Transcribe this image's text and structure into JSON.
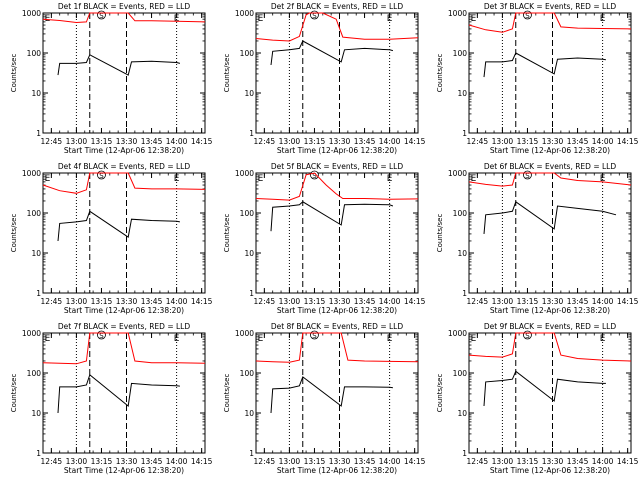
{
  "figure": {
    "ylabel": "Counts/sec",
    "xlabel": "Start Time (12-Apr-06 12:38:20)",
    "time_ticks": [
      "12:45",
      "13:00",
      "13:15",
      "13:30",
      "13:45",
      "14:00",
      "14:15"
    ],
    "y_ticks": [
      "1",
      "10",
      "100",
      "1000"
    ],
    "marker_labels": [
      "E",
      "S",
      "E"
    ],
    "colors": {
      "events": "#000000",
      "lld": "#ff0000",
      "axis": "#000000"
    }
  },
  "chart_data": [
    {
      "type": "line",
      "title": "Det 1f BLACK = Events, RED = LLD",
      "ylabel": "Counts/sec",
      "xlabel": "Start Time (12-Apr-06 12:38:20)",
      "ylim": [
        1,
        1000
      ],
      "y_scale": "log",
      "xlim": [
        "12:40",
        "14:17"
      ],
      "markers": {
        "E_start": "12:41",
        "S": "13:15",
        "E_end": "14:00",
        "dashed": [
          "13:08",
          "13:30"
        ],
        "dotted": [
          "13:00",
          "14:00"
        ]
      },
      "series": [
        {
          "name": "Events",
          "color": "#000000",
          "x": [
            "12:49",
            "12:50",
            "13:00",
            "13:06",
            "13:08",
            "13:31",
            "13:33",
            "13:45",
            "14:00",
            "14:02"
          ],
          "y": [
            28,
            55,
            55,
            58,
            90,
            28,
            60,
            62,
            58,
            55
          ]
        },
        {
          "name": "LLD",
          "color": "#ff0000",
          "x": [
            "12:40",
            "12:50",
            "13:00",
            "13:06",
            "13:08",
            "13:31",
            "13:35",
            "13:45",
            "14:00",
            "14:17"
          ],
          "y": [
            700,
            650,
            580,
            600,
            1000,
            1000,
            640,
            640,
            620,
            600
          ]
        }
      ]
    },
    {
      "type": "line",
      "title": "Det 2f BLACK = Events, RED = LLD",
      "ylabel": "Counts/sec",
      "xlabel": "Start Time (12-Apr-06 12:38:20)",
      "ylim": [
        1,
        1000
      ],
      "y_scale": "log",
      "xlim": [
        "12:40",
        "14:17"
      ],
      "markers": {
        "E_start": "12:41",
        "S": "13:15",
        "E_end": "14:00",
        "dashed": [
          "13:08",
          "13:30"
        ],
        "dotted": [
          "13:00",
          "14:00"
        ]
      },
      "series": [
        {
          "name": "Events",
          "color": "#000000",
          "x": [
            "12:49",
            "12:50",
            "13:00",
            "13:06",
            "13:08",
            "13:31",
            "13:33",
            "13:45",
            "14:00",
            "14:02"
          ],
          "y": [
            50,
            110,
            120,
            130,
            200,
            60,
            120,
            130,
            120,
            115
          ]
        },
        {
          "name": "LLD",
          "color": "#ff0000",
          "x": [
            "12:40",
            "12:50",
            "13:00",
            "13:06",
            "13:10",
            "13:12",
            "13:20",
            "13:28",
            "13:32",
            "13:45",
            "14:00",
            "14:17"
          ],
          "y": [
            230,
            210,
            200,
            260,
            900,
            1000,
            1000,
            700,
            250,
            220,
            220,
            240
          ]
        }
      ]
    },
    {
      "type": "line",
      "title": "Det 3f BLACK = Events, RED = LLD",
      "ylabel": "Counts/sec",
      "xlabel": "Start Time (12-Apr-06 12:38:20)",
      "ylim": [
        1,
        1000
      ],
      "y_scale": "log",
      "xlim": [
        "12:40",
        "14:17"
      ],
      "markers": {
        "E_start": "12:41",
        "S": "13:15",
        "E_end": "14:00",
        "dashed": [
          "13:08",
          "13:30"
        ],
        "dotted": [
          "13:00",
          "14:00"
        ]
      },
      "series": [
        {
          "name": "Events",
          "color": "#000000",
          "x": [
            "12:49",
            "12:50",
            "13:00",
            "13:06",
            "13:08",
            "13:31",
            "13:33",
            "13:45",
            "14:00",
            "14:02"
          ],
          "y": [
            25,
            60,
            60,
            65,
            100,
            30,
            70,
            75,
            70,
            68
          ]
        },
        {
          "name": "LLD",
          "color": "#ff0000",
          "x": [
            "12:40",
            "12:50",
            "13:00",
            "13:06",
            "13:08",
            "13:31",
            "13:35",
            "13:45",
            "14:00",
            "14:17"
          ],
          "y": [
            500,
            380,
            330,
            400,
            1000,
            1000,
            450,
            420,
            410,
            400
          ]
        }
      ]
    },
    {
      "type": "line",
      "title": "Det 4f BLACK = Events, RED = LLD",
      "ylabel": "Counts/sec",
      "xlabel": "Start Time (12-Apr-06 12:38:20)",
      "ylim": [
        1,
        1000
      ],
      "y_scale": "log",
      "xlim": [
        "12:40",
        "14:17"
      ],
      "markers": {
        "E_start": "12:41",
        "S": "13:15",
        "E_end": "14:00",
        "dashed": [
          "13:08",
          "13:30"
        ],
        "dotted": [
          "13:00",
          "14:00"
        ]
      },
      "series": [
        {
          "name": "Events",
          "color": "#000000",
          "x": [
            "12:49",
            "12:50",
            "13:00",
            "13:06",
            "13:08",
            "13:31",
            "13:33",
            "13:45",
            "14:00",
            "14:02"
          ],
          "y": [
            20,
            55,
            60,
            65,
            110,
            25,
            70,
            65,
            62,
            60
          ]
        },
        {
          "name": "LLD",
          "color": "#ff0000",
          "x": [
            "12:40",
            "12:50",
            "13:00",
            "13:06",
            "13:08",
            "13:31",
            "13:35",
            "13:45",
            "14:00",
            "14:17"
          ],
          "y": [
            500,
            360,
            310,
            380,
            1000,
            1000,
            420,
            400,
            400,
            390
          ]
        }
      ]
    },
    {
      "type": "line",
      "title": "Det 5f BLACK = Events, RED = LLD",
      "ylabel": "Counts/sec",
      "xlabel": "Start Time (12-Apr-06 12:38:20)",
      "ylim": [
        1,
        1000
      ],
      "y_scale": "log",
      "xlim": [
        "12:40",
        "14:17"
      ],
      "markers": {
        "E_start": "12:41",
        "S": "13:15",
        "E_end": "14:00",
        "dashed": [
          "13:08",
          "13:30"
        ],
        "dotted": [
          "13:00",
          "14:00"
        ]
      },
      "series": [
        {
          "name": "Events",
          "color": "#000000",
          "x": [
            "12:49",
            "12:50",
            "13:00",
            "13:06",
            "13:08",
            "13:31",
            "13:33",
            "13:45",
            "14:00",
            "14:02"
          ],
          "y": [
            35,
            140,
            150,
            160,
            190,
            50,
            160,
            165,
            160,
            150
          ]
        },
        {
          "name": "LLD",
          "color": "#ff0000",
          "x": [
            "12:40",
            "12:50",
            "13:00",
            "13:06",
            "13:10",
            "13:15",
            "13:22",
            "13:28",
            "13:32",
            "13:45",
            "14:00",
            "14:17"
          ],
          "y": [
            230,
            220,
            210,
            260,
            900,
            1000,
            500,
            300,
            230,
            230,
            220,
            225
          ]
        }
      ]
    },
    {
      "type": "line",
      "title": "Det 6f BLACK = Events, RED = LLD",
      "ylabel": "Counts/sec",
      "xlabel": "Start Time (12-Apr-06 12:38:20)",
      "ylim": [
        1,
        1000
      ],
      "y_scale": "log",
      "xlim": [
        "12:40",
        "14:17"
      ],
      "markers": {
        "E_start": "12:41",
        "S": "13:15",
        "E_end": "14:00",
        "dashed": [
          "13:08",
          "13:30"
        ],
        "dotted": [
          "13:00",
          "14:00"
        ]
      },
      "series": [
        {
          "name": "Events",
          "color": "#000000",
          "x": [
            "12:49",
            "12:50",
            "13:00",
            "13:06",
            "13:08",
            "13:31",
            "13:33",
            "13:45",
            "14:00",
            "14:08"
          ],
          "y": [
            30,
            90,
            100,
            110,
            190,
            40,
            150,
            130,
            110,
            90
          ]
        },
        {
          "name": "LLD",
          "color": "#ff0000",
          "x": [
            "12:40",
            "12:50",
            "13:00",
            "13:06",
            "13:08",
            "13:31",
            "13:35",
            "13:45",
            "14:00",
            "14:17"
          ],
          "y": [
            600,
            520,
            470,
            500,
            1000,
            1000,
            750,
            650,
            600,
            500
          ]
        }
      ]
    },
    {
      "type": "line",
      "title": "Det 7f BLACK = Events, RED = LLD",
      "ylabel": "Counts/sec",
      "xlabel": "Start Time (12-Apr-06 12:38:20)",
      "ylim": [
        1,
        1000
      ],
      "y_scale": "log",
      "xlim": [
        "12:40",
        "14:17"
      ],
      "markers": {
        "E_start": "12:41",
        "S": "13:15",
        "E_end": "14:00",
        "dashed": [
          "13:08",
          "13:30"
        ],
        "dotted": [
          "13:00",
          "14:00"
        ]
      },
      "series": [
        {
          "name": "Events",
          "color": "#000000",
          "x": [
            "12:49",
            "12:50",
            "13:00",
            "13:06",
            "13:08",
            "13:31",
            "13:33",
            "13:45",
            "14:00",
            "14:02"
          ],
          "y": [
            10,
            45,
            45,
            50,
            90,
            15,
            55,
            50,
            48,
            47
          ]
        },
        {
          "name": "LLD",
          "color": "#ff0000",
          "x": [
            "12:40",
            "12:50",
            "13:00",
            "13:06",
            "13:08",
            "13:31",
            "13:35",
            "13:45",
            "14:00",
            "14:17"
          ],
          "y": [
            180,
            175,
            170,
            200,
            1000,
            1000,
            200,
            180,
            180,
            175
          ]
        }
      ]
    },
    {
      "type": "line",
      "title": "Det 8f BLACK = Events, RED = LLD",
      "ylabel": "Counts/sec",
      "xlabel": "Start Time (12-Apr-06 12:38:20)",
      "ylim": [
        1,
        1000
      ],
      "y_scale": "log",
      "xlim": [
        "12:40",
        "14:17"
      ],
      "markers": {
        "E_start": "12:41",
        "S": "13:15",
        "E_end": "14:00",
        "dashed": [
          "13:08",
          "13:30"
        ],
        "dotted": [
          "13:00",
          "14:00"
        ]
      },
      "series": [
        {
          "name": "Events",
          "color": "#000000",
          "x": [
            "12:49",
            "12:50",
            "13:00",
            "13:06",
            "13:08",
            "13:31",
            "13:33",
            "13:45",
            "14:00",
            "14:02"
          ],
          "y": [
            10,
            40,
            42,
            48,
            80,
            15,
            45,
            45,
            44,
            43
          ]
        },
        {
          "name": "LLD",
          "color": "#ff0000",
          "x": [
            "12:40",
            "12:50",
            "13:00",
            "13:06",
            "13:08",
            "13:31",
            "13:35",
            "13:45",
            "14:00",
            "14:17"
          ],
          "y": [
            200,
            190,
            185,
            210,
            1000,
            1000,
            210,
            200,
            195,
            190
          ]
        }
      ]
    },
    {
      "type": "line",
      "title": "Det 9f BLACK = Events, RED = LLD",
      "ylabel": "Counts/sec",
      "xlabel": "Start Time (12-Apr-06 12:38:20)",
      "ylim": [
        1,
        1000
      ],
      "y_scale": "log",
      "xlim": [
        "12:40",
        "14:17"
      ],
      "markers": {
        "E_start": "12:41",
        "S": "13:15",
        "E_end": "14:00",
        "dashed": [
          "13:08",
          "13:30"
        ],
        "dotted": [
          "13:00",
          "14:00"
        ]
      },
      "series": [
        {
          "name": "Events",
          "color": "#000000",
          "x": [
            "12:49",
            "12:50",
            "13:00",
            "13:06",
            "13:08",
            "13:31",
            "13:33",
            "13:45",
            "14:00",
            "14:02"
          ],
          "y": [
            15,
            60,
            65,
            70,
            110,
            20,
            70,
            60,
            55,
            55
          ]
        },
        {
          "name": "LLD",
          "color": "#ff0000",
          "x": [
            "12:40",
            "12:50",
            "13:00",
            "13:06",
            "13:08",
            "13:31",
            "13:35",
            "13:45",
            "14:00",
            "14:17"
          ],
          "y": [
            280,
            260,
            250,
            300,
            1000,
            1000,
            280,
            230,
            210,
            200
          ]
        }
      ]
    }
  ]
}
